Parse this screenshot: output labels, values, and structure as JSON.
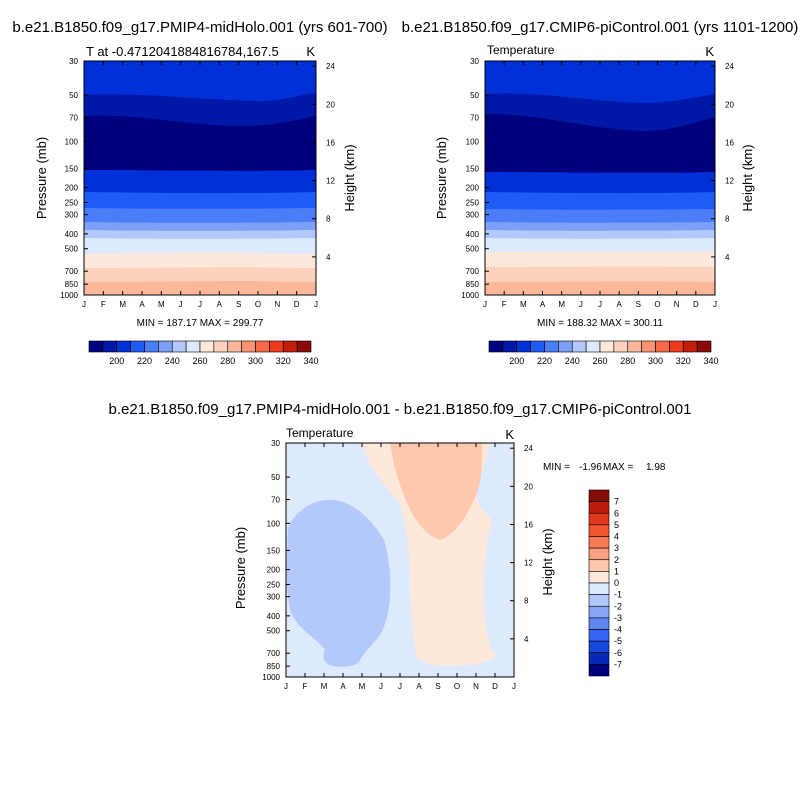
{
  "chart_data": [
    {
      "type": "contour",
      "title": "b.e21.B1850.f09_g17.PMIP4-midHolo.001 (yrs 601-700)",
      "subtitle_left": "T at -0.4712041884816784,167.5",
      "subtitle_right": "K",
      "xlabel": "",
      "ylabel": "Pressure (mb)",
      "ylabel_right": "Height (km)",
      "x_ticks": [
        "J",
        "F",
        "M",
        "A",
        "M",
        "J",
        "J",
        "A",
        "S",
        "O",
        "N",
        "D",
        "J"
      ],
      "y_ticks": [
        "30",
        "50",
        "70",
        "100",
        "150",
        "200",
        "250",
        "300",
        "400",
        "500",
        "700",
        "850",
        "1000"
      ],
      "y_ticks_right": [
        "24",
        "20",
        "16",
        "12",
        "8",
        "4"
      ],
      "stats": "MIN = 187.17 MAX = 299.77",
      "colorbar_labels": [
        "200",
        "220",
        "240",
        "260",
        "280",
        "300",
        "320",
        "340"
      ],
      "colorbar_levels": [
        190,
        200,
        210,
        220,
        230,
        240,
        250,
        260,
        270,
        280,
        290,
        300,
        310,
        320,
        330,
        340
      ],
      "min": 187.17,
      "max": 299.77
    },
    {
      "type": "contour",
      "title": "b.e21.B1850.f09_g17.CMIP6-piControl.001 (yrs 1101-1200)",
      "subtitle_left": "Temperature",
      "subtitle_right": "K",
      "xlabel": "",
      "ylabel": "Pressure (mb)",
      "ylabel_right": "Height (km)",
      "x_ticks": [
        "J",
        "F",
        "M",
        "A",
        "M",
        "J",
        "J",
        "A",
        "S",
        "O",
        "N",
        "D",
        "J"
      ],
      "y_ticks": [
        "30",
        "50",
        "70",
        "100",
        "150",
        "200",
        "250",
        "300",
        "400",
        "500",
        "700",
        "850",
        "1000"
      ],
      "y_ticks_right": [
        "24",
        "20",
        "16",
        "12",
        "8",
        "4"
      ],
      "stats": "MIN = 188.32 MAX = 300.11",
      "colorbar_labels": [
        "200",
        "220",
        "240",
        "260",
        "280",
        "300",
        "320",
        "340"
      ],
      "colorbar_levels": [
        190,
        200,
        210,
        220,
        230,
        240,
        250,
        260,
        270,
        280,
        290,
        300,
        310,
        320,
        330,
        340
      ],
      "min": 188.32,
      "max": 300.11
    },
    {
      "type": "contour",
      "title": "b.e21.B1850.f09_g17.PMIP4-midHolo.001 - b.e21.B1850.f09_g17.CMIP6-piControl.001",
      "subtitle_left": "Temperature",
      "subtitle_right": "K",
      "xlabel": "",
      "ylabel": "Pressure (mb)",
      "ylabel_right": "Height (km)",
      "x_ticks": [
        "J",
        "F",
        "M",
        "A",
        "M",
        "J",
        "J",
        "A",
        "S",
        "O",
        "N",
        "D",
        "J"
      ],
      "y_ticks": [
        "30",
        "50",
        "70",
        "100",
        "150",
        "200",
        "250",
        "300",
        "400",
        "500",
        "700",
        "850",
        "1000"
      ],
      "y_ticks_right": [
        "24",
        "20",
        "16",
        "12",
        "8",
        "4"
      ],
      "stats_min_label": "MIN =",
      "stats_min": "-1.96",
      "stats_max_label": "MAX =",
      "stats_max": "1.98",
      "colorbar_labels": [
        "7",
        "6",
        "5",
        "4",
        "3",
        "2",
        "1",
        "0",
        "-1",
        "-2",
        "-3",
        "-4",
        "-5",
        "-6",
        "-7"
      ],
      "min": -1.96,
      "max": 1.98
    }
  ],
  "colors": {
    "abs_scale": [
      "#00007e",
      "#0018a8",
      "#0030d8",
      "#1f5cf5",
      "#4a7df7",
      "#7e9ff6",
      "#b3c8f9",
      "#ddeafd",
      "#fde9dc",
      "#fdd2bc",
      "#fbb79a",
      "#f89374",
      "#f46a48",
      "#ea3b1f",
      "#c21e0b",
      "#8c0a05"
    ],
    "diff_scale": [
      "#860a06",
      "#b91c0c",
      "#e2381b",
      "#f0552e",
      "#f77a55",
      "#fba080",
      "#fdc8ae",
      "#fee8da",
      "#dde9fd",
      "#b4c9fb",
      "#8aa6f6",
      "#5f86f3",
      "#3764f3",
      "#1847df",
      "#0528b8",
      "#00007e"
    ]
  }
}
